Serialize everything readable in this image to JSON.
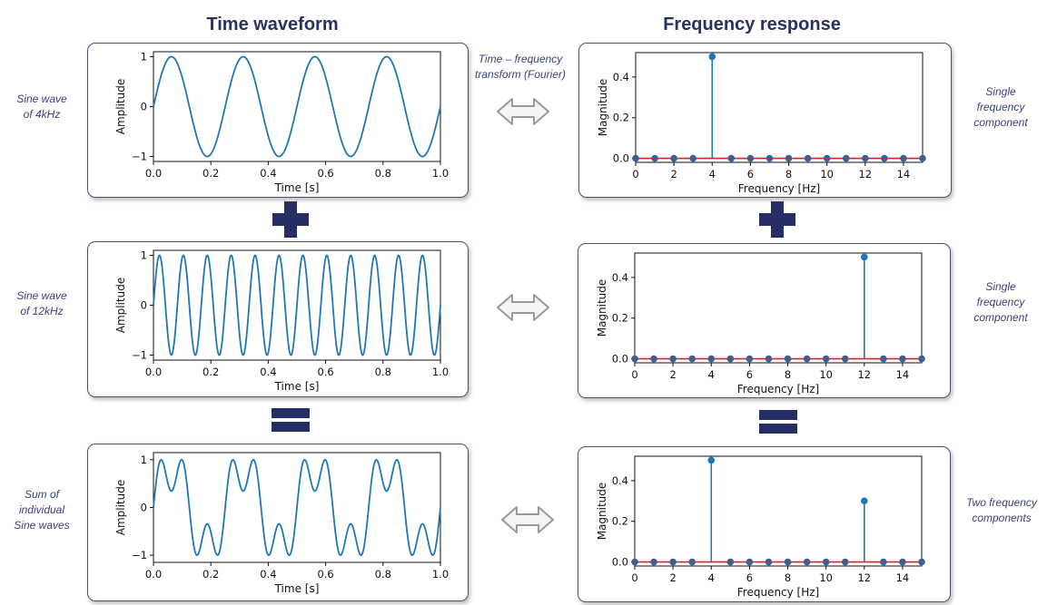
{
  "headers": {
    "time": "Time waveform",
    "freq": "Frequency response"
  },
  "transform_label": "Time – frequency transform (Fourier)",
  "rows": [
    {
      "left_label": "Sine wave of 4kHz",
      "right_label": "Single frequency component"
    },
    {
      "left_label": "Sine wave of 12kHz",
      "right_label": "Single frequency component"
    },
    {
      "left_label": "Sum of individual Sine waves",
      "right_label": "Two frequency components"
    }
  ],
  "colors": {
    "line": "#1f77b4",
    "baseline": "#d62728",
    "accent": "#262e66",
    "label": "#3a4278"
  },
  "chart_data": [
    {
      "type": "line",
      "xlabel": "Time [s]",
      "ylabel": "Amplitude",
      "xlim": [
        0,
        1
      ],
      "ylim": [
        -1.1,
        1.1
      ],
      "xticks": [
        "0.0",
        "0.2",
        "0.4",
        "0.6",
        "0.8",
        "1.0"
      ],
      "yticks": [
        "1",
        "0",
        "−1"
      ],
      "series": [
        {
          "components": [
            {
              "frequency": 4,
              "amplitude": 1
            }
          ]
        }
      ]
    },
    {
      "type": "stem",
      "xlabel": "Frequency [Hz]",
      "ylabel": "Magnitude",
      "xlim": [
        0,
        15
      ],
      "ylim": [
        -0.02,
        0.52
      ],
      "xticks": [
        "0",
        "2",
        "4",
        "6",
        "8",
        "10",
        "12",
        "14"
      ],
      "yticks": [
        "0.4",
        "0.2",
        "0.0"
      ],
      "x": [
        0,
        1,
        2,
        3,
        4,
        5,
        6,
        7,
        8,
        9,
        10,
        11,
        12,
        13,
        14,
        15
      ],
      "values": [
        0,
        0,
        0,
        0,
        0.5,
        0,
        0,
        0,
        0,
        0,
        0,
        0,
        0,
        0,
        0,
        0
      ]
    },
    {
      "type": "line",
      "xlabel": "Time [s]",
      "ylabel": "Amplitude",
      "xlim": [
        0,
        1
      ],
      "ylim": [
        -1.1,
        1.1
      ],
      "xticks": [
        "0.0",
        "0.2",
        "0.4",
        "0.6",
        "0.8",
        "1.0"
      ],
      "yticks": [
        "1",
        "0",
        "−1"
      ],
      "series": [
        {
          "components": [
            {
              "frequency": 12,
              "amplitude": 1
            }
          ]
        }
      ]
    },
    {
      "type": "stem",
      "xlabel": "Frequency [Hz]",
      "ylabel": "Magnitude",
      "xlim": [
        0,
        15
      ],
      "ylim": [
        -0.02,
        0.52
      ],
      "xticks": [
        "0",
        "2",
        "4",
        "6",
        "8",
        "10",
        "12",
        "14"
      ],
      "yticks": [
        "0.4",
        "0.2",
        "0.0"
      ],
      "x": [
        0,
        1,
        2,
        3,
        4,
        5,
        6,
        7,
        8,
        9,
        10,
        11,
        12,
        13,
        14,
        15
      ],
      "values": [
        0,
        0,
        0,
        0,
        0,
        0,
        0,
        0,
        0,
        0,
        0,
        0,
        0.5,
        0,
        0,
        0
      ]
    },
    {
      "type": "line",
      "xlabel": "Time [s]",
      "ylabel": "Amplitude",
      "xlim": [
        0,
        1
      ],
      "ylim": [
        -1.15,
        1.15
      ],
      "xticks": [
        "0.0",
        "0.2",
        "0.4",
        "0.6",
        "0.8",
        "1.0"
      ],
      "yticks": [
        "1",
        "0",
        "−1"
      ],
      "series": [
        {
          "components": [
            {
              "frequency": 4,
              "amplitude": 0.5
            },
            {
              "frequency": 12,
              "amplitude": 0.3
            }
          ],
          "normalized_peak": 1.0
        }
      ]
    },
    {
      "type": "stem",
      "xlabel": "Frequency [Hz]",
      "ylabel": "Magnitude",
      "xlim": [
        0,
        15
      ],
      "ylim": [
        -0.02,
        0.52
      ],
      "xticks": [
        "0",
        "2",
        "4",
        "6",
        "8",
        "10",
        "12",
        "14"
      ],
      "yticks": [
        "0.4",
        "0.2",
        "0.0"
      ],
      "x": [
        0,
        1,
        2,
        3,
        4,
        5,
        6,
        7,
        8,
        9,
        10,
        11,
        12,
        13,
        14,
        15
      ],
      "values": [
        0,
        0,
        0,
        0,
        0.5,
        0,
        0,
        0,
        0,
        0,
        0,
        0,
        0.3,
        0,
        0,
        0
      ]
    }
  ]
}
